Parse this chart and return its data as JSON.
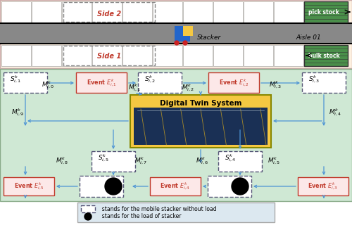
{
  "fig_width": 5.0,
  "fig_height": 3.2,
  "dpi": 100,
  "top_bg": "#fdf0e0",
  "bottom_bg": "#cfe8d4",
  "legend_bg": "#dce8f0",
  "arrow_color": "#4d94d4",
  "side1_label": "Side 1",
  "side2_label": "Side 2",
  "aisle_label": "Aisle 01",
  "stacker_label": "Stacker",
  "pick_label": "pick stock",
  "bulk_label": "bulk stock",
  "dt_label": "Digital Twin System",
  "legend_text1": "  stands for the mobile stacker without load",
  "legend_text2": "  stands for the load of stacker"
}
